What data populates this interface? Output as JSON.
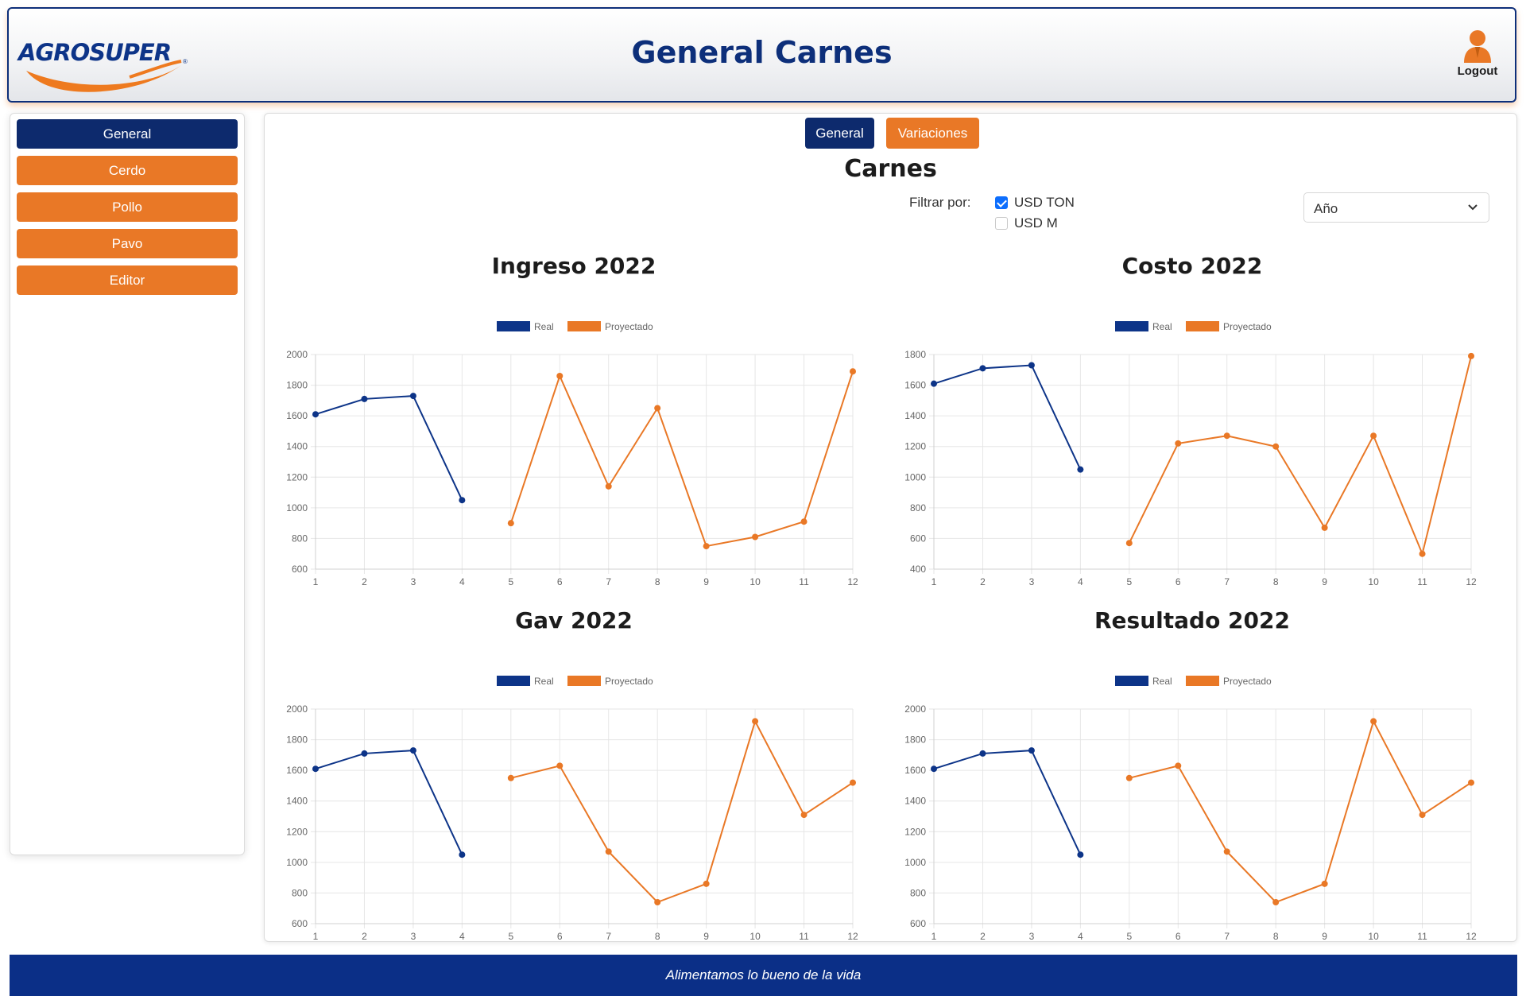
{
  "header": {
    "logo_text": "AGROSUPER",
    "logo_mark": "®",
    "title": "General Carnes",
    "logout_label": "Logout",
    "logout_icon": "user-icon"
  },
  "sidebar": {
    "items": [
      {
        "label": "General",
        "active": true
      },
      {
        "label": "Cerdo",
        "active": false
      },
      {
        "label": "Pollo",
        "active": false
      },
      {
        "label": "Pavo",
        "active": false
      },
      {
        "label": "Editor",
        "active": false
      }
    ]
  },
  "main": {
    "tabs": [
      {
        "label": "General",
        "active": true
      },
      {
        "label": "Variaciones",
        "active": false
      }
    ],
    "section_title": "Carnes",
    "filter": {
      "label": "Filtrar por:",
      "options": [
        {
          "label": "USD TON",
          "checked": true
        },
        {
          "label": "USD M",
          "checked": false
        }
      ]
    },
    "period_select": {
      "value": "Año"
    }
  },
  "colors": {
    "navy": "#0d2a6d",
    "orange": "#e97826",
    "real_line": "#0d3488",
    "proj_line": "#e97826"
  },
  "chart_data": [
    {
      "type": "line",
      "title": "Ingreso 2022",
      "x": [
        1,
        2,
        3,
        4,
        5,
        6,
        7,
        8,
        9,
        10,
        11,
        12
      ],
      "ylim": [
        600,
        2000
      ],
      "yticks": [
        600,
        800,
        1000,
        1200,
        1400,
        1600,
        1800,
        2000
      ],
      "grid": true,
      "legend": "top-center",
      "series": [
        {
          "name": "Real",
          "color": "#0d3488",
          "values": [
            1610,
            1710,
            1730,
            1050,
            null,
            null,
            null,
            null,
            null,
            null,
            null,
            null
          ]
        },
        {
          "name": "Proyectado",
          "color": "#e97826",
          "values": [
            null,
            null,
            null,
            null,
            900,
            1860,
            1140,
            1650,
            750,
            810,
            910,
            1890
          ]
        }
      ]
    },
    {
      "type": "line",
      "title": "Costo 2022",
      "x": [
        1,
        2,
        3,
        4,
        5,
        6,
        7,
        8,
        9,
        10,
        11,
        12
      ],
      "ylim": [
        400,
        1800
      ],
      "yticks": [
        400,
        600,
        800,
        1000,
        1200,
        1400,
        1600,
        1800
      ],
      "grid": true,
      "legend": "top-center",
      "series": [
        {
          "name": "Real",
          "color": "#0d3488",
          "values": [
            1610,
            1710,
            1730,
            1050,
            null,
            null,
            null,
            null,
            null,
            null,
            null,
            null
          ]
        },
        {
          "name": "Proyectado",
          "color": "#e97826",
          "values": [
            null,
            null,
            null,
            null,
            570,
            1220,
            1270,
            1200,
            670,
            1270,
            500,
            1790
          ]
        }
      ]
    },
    {
      "type": "line",
      "title": "Gav 2022",
      "x": [
        1,
        2,
        3,
        4,
        5,
        6,
        7,
        8,
        9,
        10,
        11,
        12
      ],
      "ylim": [
        600,
        2000
      ],
      "yticks": [
        600,
        800,
        1000,
        1200,
        1400,
        1600,
        1800,
        2000
      ],
      "grid": true,
      "legend": "top-center",
      "series": [
        {
          "name": "Real",
          "color": "#0d3488",
          "values": [
            1610,
            1710,
            1730,
            1050,
            null,
            null,
            null,
            null,
            null,
            null,
            null,
            null
          ]
        },
        {
          "name": "Proyectado",
          "color": "#e97826",
          "values": [
            null,
            null,
            null,
            null,
            1550,
            1630,
            1070,
            740,
            860,
            1920,
            1310,
            1520
          ]
        }
      ]
    },
    {
      "type": "line",
      "title": "Resultado 2022",
      "x": [
        1,
        2,
        3,
        4,
        5,
        6,
        7,
        8,
        9,
        10,
        11,
        12
      ],
      "ylim": [
        600,
        2000
      ],
      "yticks": [
        600,
        800,
        1000,
        1200,
        1400,
        1600,
        1800,
        2000
      ],
      "grid": true,
      "legend": "top-center",
      "series": [
        {
          "name": "Real",
          "color": "#0d3488",
          "values": [
            1610,
            1710,
            1730,
            1050,
            null,
            null,
            null,
            null,
            null,
            null,
            null,
            null
          ]
        },
        {
          "name": "Proyectado",
          "color": "#e97826",
          "values": [
            null,
            null,
            null,
            null,
            1550,
            1630,
            1070,
            740,
            860,
            1920,
            1310,
            1520
          ]
        }
      ]
    }
  ],
  "footer": {
    "text": "Alimentamos lo bueno de la vida"
  }
}
